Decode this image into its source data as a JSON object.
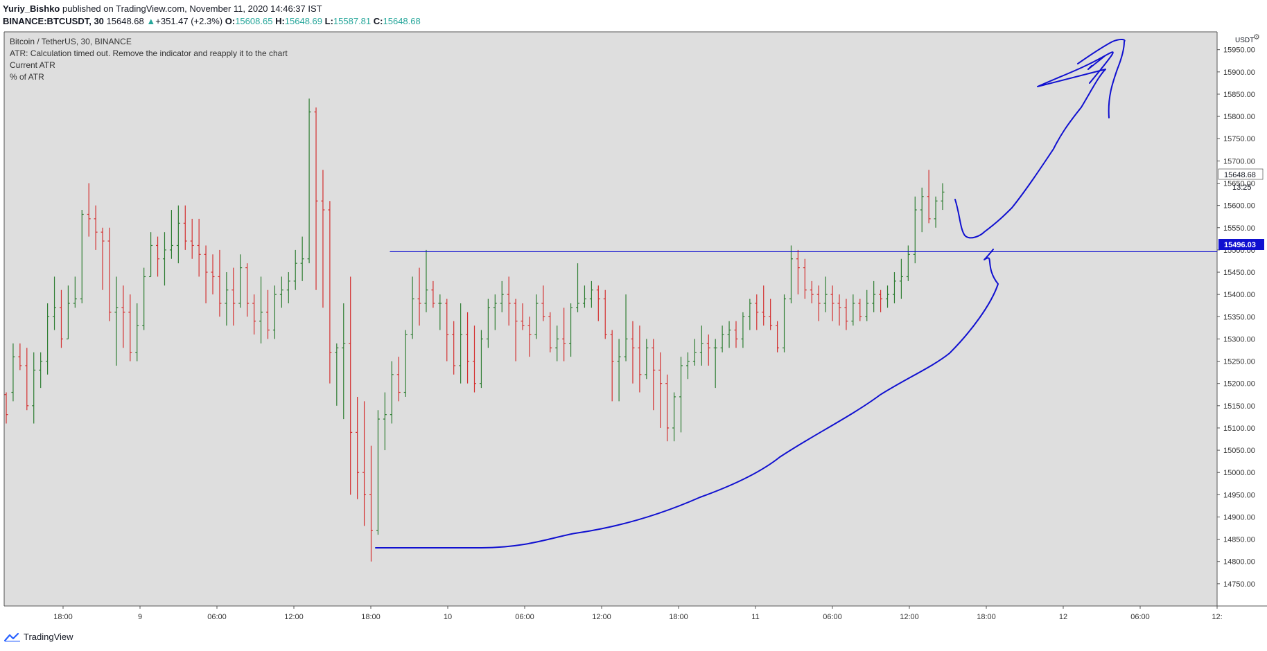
{
  "header": {
    "author": "Yuriy_Bishko",
    "published_text": "published on TradingView.com, November 11, 2020 14:46:37 IST",
    "symbol": "BINANCE:BTCUSDT, 30",
    "last": "15648.68",
    "change": "+351.47 (+2.3%)",
    "open_label": "O:",
    "open": "15608.65",
    "high_label": "H:",
    "high": "15648.69",
    "low_label": "L:",
    "low": "15587.81",
    "close_label": "C:",
    "close": "15648.68"
  },
  "legend": {
    "title": "Bitcoin / TetherUS, 30, BINANCE",
    "atr_message": "ATR: Calculation timed out. Remove the indicator and reapply it to the chart",
    "current_atr": "Current ATR",
    "pct_atr": "% of ATR"
  },
  "price_axis": {
    "currency": "USDT",
    "current_price": "15648.68",
    "countdown": "13:25",
    "hline_price": "15496.03"
  },
  "footer": {
    "brand": "TradingView"
  },
  "colors": {
    "background": "#dedede",
    "up": "#2e7d32",
    "down": "#d32f2f",
    "drawing": "#1010d0",
    "hline_label_bg": "#1010d0"
  },
  "chart_data": {
    "type": "ohlc",
    "title": "Bitcoin / TetherUS, 30, BINANCE",
    "x_ticks": [
      "18:00",
      "9",
      "06:00",
      "12:00",
      "18:00",
      "10",
      "06:00",
      "12:00",
      "18:00",
      "11",
      "06:00",
      "12:00",
      "18:00",
      "12",
      "06:00",
      "12:"
    ],
    "y_ticks": [
      14750,
      14800,
      14850,
      14900,
      14950,
      15000,
      15050,
      15100,
      15150,
      15200,
      15250,
      15300,
      15350,
      15400,
      15450,
      15500,
      15550,
      15600,
      15650,
      15700,
      15750,
      15800,
      15850,
      15900,
      15950
    ],
    "ylim": [
      14700,
      15990
    ],
    "bars": [
      [
        15175,
        15180,
        15110,
        15130
      ],
      [
        15180,
        15290,
        15160,
        15260
      ],
      [
        15260,
        15290,
        15230,
        15240
      ],
      [
        15240,
        15280,
        15140,
        15150
      ],
      [
        15150,
        15270,
        15110,
        15230
      ],
      [
        15230,
        15270,
        15190,
        15250
      ],
      [
        15250,
        15380,
        15220,
        15350
      ],
      [
        15350,
        15440,
        15320,
        15370
      ],
      [
        15370,
        15410,
        15280,
        15300
      ],
      [
        15300,
        15420,
        15300,
        15380
      ],
      [
        15380,
        15440,
        15370,
        15390
      ],
      [
        15390,
        15590,
        15380,
        15580
      ],
      [
        15580,
        15650,
        15530,
        15570
      ],
      [
        15570,
        15600,
        15500,
        15540
      ],
      [
        15540,
        15550,
        15410,
        15520
      ],
      [
        15520,
        15550,
        15340,
        15360
      ],
      [
        15360,
        15440,
        15240,
        15370
      ],
      [
        15370,
        15420,
        15280,
        15360
      ],
      [
        15360,
        15400,
        15250,
        15270
      ],
      [
        15270,
        15380,
        15250,
        15330
      ],
      [
        15330,
        15460,
        15320,
        15440
      ],
      [
        15440,
        15540,
        15440,
        15510
      ],
      [
        15510,
        15530,
        15440,
        15480
      ],
      [
        15480,
        15540,
        15420,
        15500
      ],
      [
        15500,
        15590,
        15480,
        15510
      ],
      [
        15510,
        15600,
        15470,
        15560
      ],
      [
        15560,
        15600,
        15500,
        15520
      ],
      [
        15520,
        15570,
        15480,
        15510
      ],
      [
        15510,
        15570,
        15440,
        15490
      ],
      [
        15490,
        15510,
        15380,
        15450
      ],
      [
        15450,
        15490,
        15400,
        15440
      ],
      [
        15440,
        15500,
        15350,
        15380
      ],
      [
        15380,
        15450,
        15330,
        15410
      ],
      [
        15410,
        15460,
        15330,
        15380
      ],
      [
        15380,
        15490,
        15370,
        15460
      ],
      [
        15460,
        15470,
        15350,
        15380
      ],
      [
        15380,
        15400,
        15310,
        15340
      ],
      [
        15340,
        15440,
        15290,
        15360
      ],
      [
        15360,
        15410,
        15300,
        15320
      ],
      [
        15320,
        15420,
        15300,
        15400
      ],
      [
        15400,
        15440,
        15370,
        15410
      ],
      [
        15410,
        15450,
        15380,
        15430
      ],
      [
        15430,
        15500,
        15410,
        15470
      ],
      [
        15470,
        15530,
        15430,
        15480
      ],
      [
        15480,
        15840,
        15470,
        15810
      ],
      [
        15810,
        15820,
        15410,
        15610
      ],
      [
        15610,
        15680,
        15370,
        15590
      ],
      [
        15590,
        15610,
        15200,
        15270
      ],
      [
        15270,
        15290,
        15150,
        15280
      ],
      [
        15280,
        15380,
        15120,
        15290
      ],
      [
        15290,
        15440,
        14950,
        15090
      ],
      [
        15090,
        15170,
        14940,
        15000
      ],
      [
        15000,
        15160,
        14880,
        14950
      ],
      [
        14950,
        15060,
        14800,
        14870
      ],
      [
        14870,
        15140,
        14860,
        15120
      ],
      [
        15120,
        15180,
        15050,
        15130
      ],
      [
        15130,
        15250,
        15110,
        15220
      ],
      [
        15220,
        15260,
        15160,
        15180
      ],
      [
        15180,
        15320,
        15170,
        15310
      ],
      [
        15310,
        15440,
        15300,
        15390
      ],
      [
        15390,
        15460,
        15330,
        15380
      ],
      [
        15380,
        15500,
        15360,
        15410
      ],
      [
        15410,
        15430,
        15370,
        15380
      ],
      [
        15380,
        15400,
        15320,
        15380
      ],
      [
        15380,
        15390,
        15250,
        15310
      ],
      [
        15310,
        15340,
        15220,
        15240
      ],
      [
        15240,
        15380,
        15200,
        15310
      ],
      [
        15310,
        15360,
        15200,
        15250
      ],
      [
        15250,
        15330,
        15180,
        15200
      ],
      [
        15200,
        15320,
        15190,
        15300
      ],
      [
        15300,
        15390,
        15280,
        15370
      ],
      [
        15370,
        15400,
        15320,
        15380
      ],
      [
        15380,
        15430,
        15360,
        15400
      ],
      [
        15400,
        15440,
        15330,
        15380
      ],
      [
        15380,
        15390,
        15250,
        15340
      ],
      [
        15340,
        15380,
        15320,
        15330
      ],
      [
        15330,
        15350,
        15260,
        15310
      ],
      [
        15310,
        15400,
        15300,
        15380
      ],
      [
        15380,
        15420,
        15340,
        15350
      ],
      [
        15350,
        15360,
        15270,
        15280
      ],
      [
        15280,
        15330,
        15250,
        15300
      ],
      [
        15300,
        15370,
        15250,
        15290
      ],
      [
        15290,
        15380,
        15260,
        15370
      ],
      [
        15370,
        15470,
        15360,
        15380
      ],
      [
        15380,
        15420,
        15370,
        15390
      ],
      [
        15390,
        15430,
        15370,
        15410
      ],
      [
        15410,
        15420,
        15340,
        15390
      ],
      [
        15390,
        15410,
        15300,
        15310
      ],
      [
        15310,
        15320,
        15160,
        15250
      ],
      [
        15250,
        15300,
        15160,
        15260
      ],
      [
        15260,
        15400,
        15250,
        15300
      ],
      [
        15300,
        15340,
        15200,
        15280
      ],
      [
        15280,
        15330,
        15180,
        15220
      ],
      [
        15220,
        15300,
        15210,
        15280
      ],
      [
        15280,
        15300,
        15140,
        15230
      ],
      [
        15230,
        15270,
        15100,
        15200
      ],
      [
        15200,
        15220,
        15070,
        15100
      ],
      [
        15100,
        15180,
        15070,
        15170
      ],
      [
        15170,
        15260,
        15090,
        15240
      ],
      [
        15240,
        15270,
        15210,
        15250
      ],
      [
        15250,
        15300,
        15240,
        15270
      ],
      [
        15270,
        15330,
        15240,
        15290
      ],
      [
        15290,
        15310,
        15240,
        15280
      ],
      [
        15280,
        15300,
        15190,
        15280
      ],
      [
        15280,
        15330,
        15270,
        15310
      ],
      [
        15310,
        15340,
        15280,
        15320
      ],
      [
        15320,
        15340,
        15280,
        15300
      ],
      [
        15300,
        15360,
        15280,
        15350
      ],
      [
        15350,
        15390,
        15320,
        15380
      ],
      [
        15380,
        15400,
        15320,
        15360
      ],
      [
        15360,
        15420,
        15330,
        15350
      ],
      [
        15350,
        15390,
        15320,
        15330
      ],
      [
        15330,
        15340,
        15270,
        15280
      ],
      [
        15280,
        15400,
        15270,
        15390
      ],
      [
        15390,
        15510,
        15380,
        15480
      ],
      [
        15480,
        15500,
        15400,
        15460
      ],
      [
        15460,
        15480,
        15390,
        15410
      ],
      [
        15410,
        15430,
        15380,
        15400
      ],
      [
        15400,
        15420,
        15340,
        15380
      ],
      [
        15380,
        15440,
        15360,
        15400
      ],
      [
        15400,
        15420,
        15340,
        15380
      ],
      [
        15380,
        15400,
        15330,
        15370
      ],
      [
        15370,
        15390,
        15320,
        15340
      ],
      [
        15340,
        15400,
        15330,
        15380
      ],
      [
        15380,
        15390,
        15340,
        15350
      ],
      [
        15350,
        15410,
        15340,
        15380
      ],
      [
        15380,
        15430,
        15360,
        15400
      ],
      [
        15400,
        15410,
        15360,
        15390
      ],
      [
        15390,
        15420,
        15370,
        15400
      ],
      [
        15400,
        15450,
        15380,
        15430
      ],
      [
        15430,
        15480,
        15390,
        15440
      ],
      [
        15440,
        15510,
        15430,
        15490
      ],
      [
        15490,
        15620,
        15470,
        15590
      ],
      [
        15590,
        15640,
        15540,
        15620
      ],
      [
        15620,
        15680,
        15560,
        15570
      ],
      [
        15570,
        15620,
        15550,
        15610
      ],
      [
        15610,
        15650,
        15590,
        15630
      ]
    ],
    "annotations": [
      {
        "type": "horizontal_line",
        "price": 15496.03
      }
    ]
  }
}
